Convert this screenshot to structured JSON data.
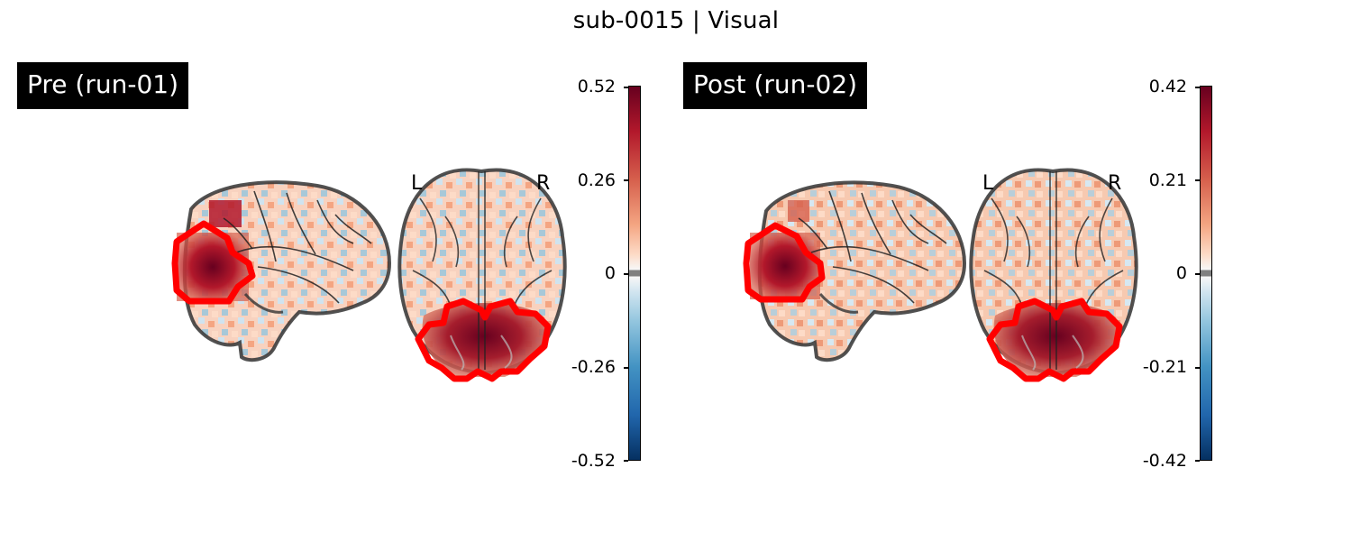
{
  "figure_title": "sub-0015 | Visual",
  "panels": [
    {
      "label": "Pre (run-01)",
      "left_marker": "L",
      "right_marker": "R",
      "colorbar": {
        "ticks": [
          "0.52",
          "0.26",
          "0",
          "-0.26",
          "-0.52"
        ],
        "vmin": -0.52,
        "vmax": 0.52,
        "colormap": "RdBu_r"
      }
    },
    {
      "label": "Post (run-02)",
      "left_marker": "L",
      "right_marker": "R",
      "colorbar": {
        "ticks": [
          "0.42",
          "0.21",
          "0",
          "-0.21",
          "-0.42"
        ],
        "vmin": -0.42,
        "vmax": 0.42,
        "colormap": "RdBu_r"
      }
    }
  ],
  "colors": {
    "roi_outline": "#ff0000",
    "positive": "#b2182b",
    "negative": "#2166ac",
    "brain_outline": "#333333"
  }
}
